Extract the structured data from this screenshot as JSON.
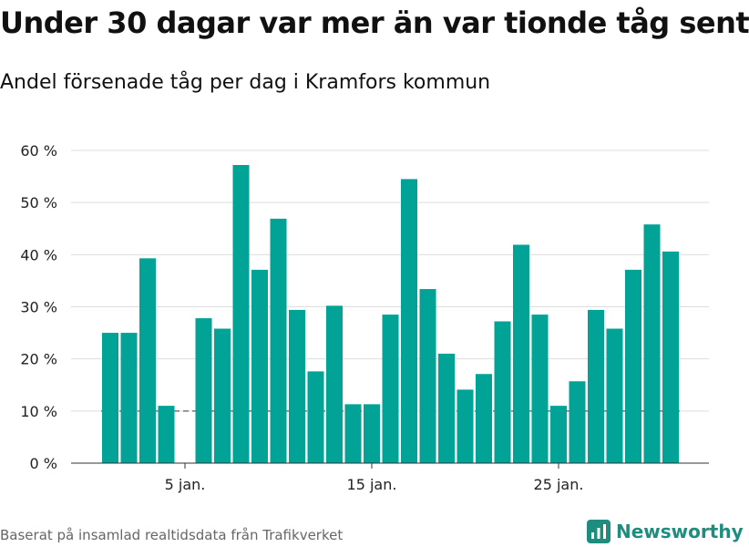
{
  "title": "Under 30 dagar var mer än var tionde tåg sent",
  "subtitle": "Andel försenade tåg per dag i Kramfors kommun",
  "source": "Baserat på insamlad realtidsdata från Trafikverket",
  "brand": "Newsworthy",
  "colors": {
    "bar": "#00a396",
    "grid": "#dddddd",
    "reference": "#777777",
    "brand": "#1f8d7e"
  },
  "chart_data": {
    "type": "bar",
    "x": [
      1,
      2,
      3,
      4,
      5,
      6,
      7,
      8,
      9,
      10,
      11,
      12,
      13,
      14,
      15,
      16,
      17,
      18,
      19,
      20,
      21,
      22,
      23,
      24,
      25,
      26,
      27,
      28,
      29,
      30,
      31
    ],
    "values": [
      25,
      25,
      39.3,
      11,
      null,
      27.8,
      25.8,
      57.2,
      37.1,
      46.9,
      29.4,
      17.6,
      30.2,
      11.3,
      11.3,
      28.5,
      54.5,
      33.4,
      21,
      14.1,
      17.1,
      27.2,
      41.9,
      28.5,
      11,
      15.7,
      29.4,
      25.8,
      37.1,
      45.8,
      40.6
    ],
    "yticks": [
      0,
      10,
      20,
      30,
      40,
      50,
      60
    ],
    "ytick_labels": [
      "0 %",
      "10 %",
      "20 %",
      "30 %",
      "40 %",
      "50 %",
      "60 %"
    ],
    "xticks": [
      5,
      15,
      25
    ],
    "xtick_labels": [
      "5 jan.",
      "15 jan.",
      "25 jan."
    ],
    "ylim": [
      0,
      60
    ],
    "reference_line": 10,
    "grid": true
  }
}
